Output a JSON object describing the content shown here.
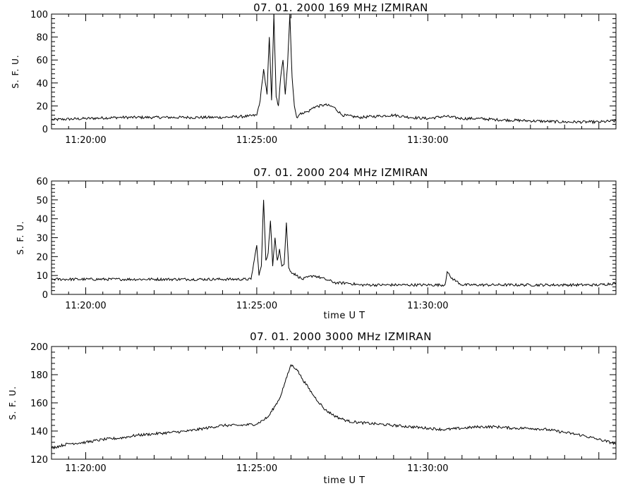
{
  "chart_data": [
    {
      "type": "line",
      "title": "07. 01. 2000   169 MHz   IZMIRAN",
      "ylabel": "S. F. U.",
      "xlabel": "",
      "xlim": [
        "11:19:00",
        "11:35:30"
      ],
      "ylim": [
        0,
        100
      ],
      "yticks": [
        0,
        20,
        40,
        60,
        80,
        100
      ],
      "xticks": [
        "11:20:00",
        "11:25:00",
        "11:30:00"
      ],
      "series": [
        {
          "x": [
            "11:19:00",
            "11:20:00",
            "11:21:00",
            "11:22:00",
            "11:23:00",
            "11:24:00",
            "11:24:45",
            "11:25:00",
            "11:25:06",
            "11:25:12",
            "11:25:18",
            "11:25:22",
            "11:25:26",
            "11:25:30",
            "11:25:34",
            "11:25:38",
            "11:25:42",
            "11:25:46",
            "11:25:50",
            "11:25:54",
            "11:25:58",
            "11:26:02",
            "11:26:06",
            "11:26:10",
            "11:26:14",
            "11:26:20",
            "11:26:30",
            "11:26:40",
            "11:27:00",
            "11:27:15",
            "11:27:30",
            "11:28:00",
            "11:28:30",
            "11:29:00",
            "11:29:30",
            "11:30:00",
            "11:30:30",
            "11:31:00",
            "11:31:30",
            "11:32:00",
            "11:33:00",
            "11:34:00",
            "11:34:45",
            "11:35:00",
            "11:35:30"
          ],
          "y": [
            8,
            9,
            10,
            10,
            10,
            10,
            11,
            12,
            25,
            52,
            30,
            80,
            25,
            100,
            28,
            20,
            45,
            60,
            30,
            55,
            100,
            45,
            20,
            10,
            12,
            14,
            15,
            19,
            21,
            19,
            12,
            10,
            11,
            12,
            10,
            9,
            11,
            9,
            9,
            8,
            7,
            6,
            6,
            6,
            7
          ]
        }
      ]
    },
    {
      "type": "line",
      "title": "07. 01. 2000   204 MHz   IZMIRAN",
      "ylabel": "S. F. U.",
      "xlabel": "time   U T",
      "xlim": [
        "11:19:00",
        "11:35:30"
      ],
      "ylim": [
        0,
        60
      ],
      "yticks": [
        0,
        10,
        20,
        30,
        40,
        50,
        60
      ],
      "xticks": [
        "11:20:00",
        "11:25:00",
        "11:30:00"
      ],
      "series": [
        {
          "x": [
            "11:19:00",
            "11:20:00",
            "11:21:00",
            "11:22:00",
            "11:23:00",
            "11:24:00",
            "11:24:50",
            "11:25:00",
            "11:25:04",
            "11:25:08",
            "11:25:12",
            "11:25:16",
            "11:25:20",
            "11:25:24",
            "11:25:28",
            "11:25:32",
            "11:25:36",
            "11:25:40",
            "11:25:44",
            "11:25:48",
            "11:25:52",
            "11:25:56",
            "11:26:00",
            "11:26:10",
            "11:26:20",
            "11:26:40",
            "11:27:00",
            "11:27:20",
            "11:27:40",
            "11:28:00",
            "11:29:00",
            "11:30:00",
            "11:30:30",
            "11:30:34",
            "11:30:40",
            "11:30:50",
            "11:31:00",
            "11:32:00",
            "11:33:00",
            "11:34:00",
            "11:35:00",
            "11:35:30"
          ],
          "y": [
            8,
            8,
            8,
            8,
            8,
            8,
            8,
            26,
            10,
            15,
            50,
            18,
            22,
            39,
            15,
            30,
            18,
            24,
            15,
            16,
            38,
            14,
            12,
            10,
            8,
            10,
            8,
            6,
            6,
            5,
            5,
            5,
            5,
            12,
            9,
            7,
            5,
            5,
            5,
            5,
            5,
            6
          ]
        }
      ]
    },
    {
      "type": "line",
      "title": "07. 01. 2000   3000 MHz   IZMIRAN",
      "ylabel": "S. F. U.",
      "xlabel": "time   U T",
      "xlim": [
        "11:19:00",
        "11:35:30"
      ],
      "ylim": [
        120,
        200
      ],
      "yticks": [
        120,
        140,
        160,
        180,
        200
      ],
      "xticks": [
        "11:20:00",
        "11:25:00",
        "11:30:00"
      ],
      "series": [
        {
          "x": [
            "11:19:00",
            "11:19:30",
            "11:20:00",
            "11:20:30",
            "11:21:00",
            "11:21:30",
            "11:22:00",
            "11:22:30",
            "11:23:00",
            "11:23:30",
            "11:24:00",
            "11:24:30",
            "11:25:00",
            "11:25:20",
            "11:25:40",
            "11:25:50",
            "11:26:00",
            "11:26:10",
            "11:26:20",
            "11:26:40",
            "11:27:00",
            "11:27:20",
            "11:27:40",
            "11:28:00",
            "11:28:30",
            "11:29:00",
            "11:29:30",
            "11:30:00",
            "11:30:30",
            "11:31:00",
            "11:31:30",
            "11:32:00",
            "11:32:30",
            "11:33:00",
            "11:33:30",
            "11:34:00",
            "11:34:30",
            "11:35:00",
            "11:35:30"
          ],
          "y": [
            128,
            131,
            132,
            134,
            135,
            137,
            138,
            139,
            140,
            142,
            144,
            144,
            145,
            150,
            163,
            175,
            187,
            184,
            177,
            165,
            155,
            150,
            147,
            146,
            145,
            144,
            143,
            142,
            141,
            142,
            143,
            143,
            142,
            142,
            141,
            139,
            137,
            134,
            131
          ]
        }
      ]
    }
  ]
}
